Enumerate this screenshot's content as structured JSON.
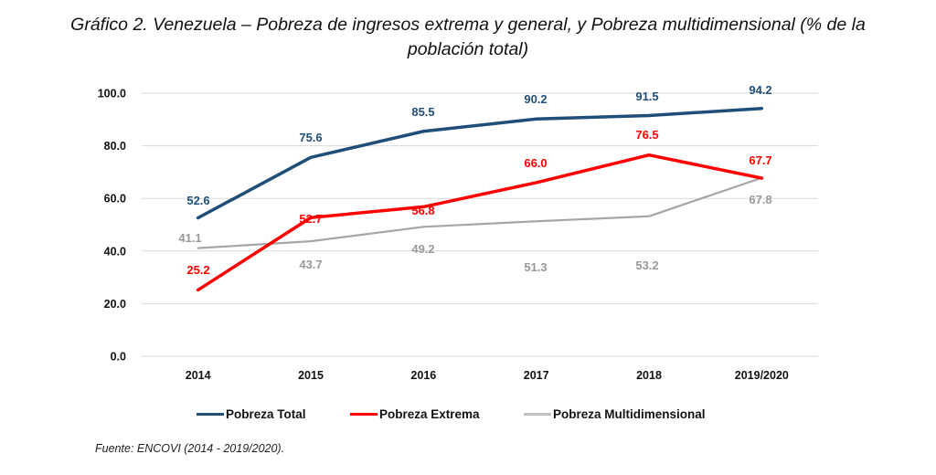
{
  "chart_data": {
    "type": "line",
    "title": "Gráfico 2. Venezuela – Pobreza de ingresos extrema y general, y Pobreza multidimensional (% de la población total)",
    "title_lines": [
      "Gráfico 2. Venezuela – Pobreza de ingresos extrema y general, y Pobreza multidimensional (% de la",
      "población total)"
    ],
    "xlabel": "",
    "ylabel": "",
    "categories": [
      "2014",
      "2015",
      "2016",
      "2017",
      "2018",
      "2019/2020"
    ],
    "ylim": [
      0,
      100
    ],
    "yticks": [
      0,
      20,
      40,
      60,
      80,
      100
    ],
    "ytick_labels": [
      "0.0",
      "20.0",
      "40.0",
      "60.0",
      "80.0",
      "100.0"
    ],
    "grid": true,
    "legend_position": "bottom",
    "series": [
      {
        "name": "Pobreza Total",
        "color": "#1f4e79",
        "values": [
          52.6,
          75.6,
          85.5,
          90.2,
          91.5,
          94.2
        ],
        "labels": [
          "52.6",
          "75.6",
          "85.5",
          "90.2",
          "91.5",
          "94.2"
        ]
      },
      {
        "name": "Pobreza Extrema",
        "color": "#ff0000",
        "values": [
          25.2,
          52.7,
          56.8,
          66.0,
          76.5,
          67.7
        ],
        "labels": [
          "25.2",
          "52.7",
          "56.8",
          "66.0",
          "76.5",
          "67.7"
        ]
      },
      {
        "name": "Pobreza Multidimensional",
        "color": "#a6a6a6",
        "values": [
          41.1,
          43.7,
          49.2,
          51.3,
          53.2,
          67.8
        ],
        "labels": [
          "41.1",
          "43.7",
          "49.2",
          "51.3",
          "53.2",
          "67.8"
        ]
      }
    ],
    "source": "Fuente:  ENCOVI (2014 - 2019/2020)."
  }
}
